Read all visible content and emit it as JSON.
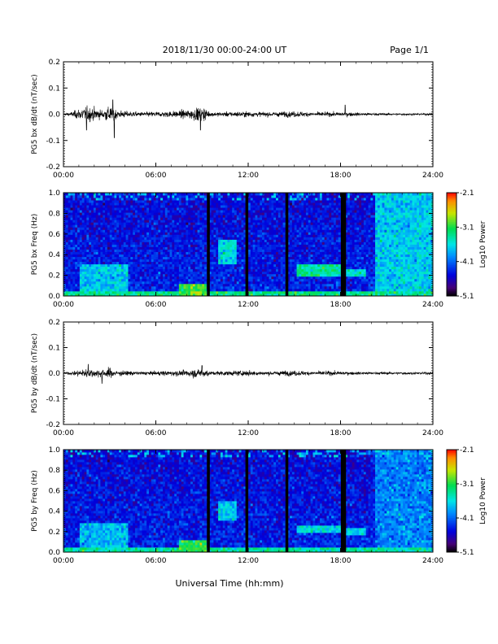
{
  "header": {
    "title": "2018/11/30  00:00-24:00 UT",
    "page": "Page 1/1"
  },
  "xlabel": "Universal Time (hh:mm)",
  "colorbar": {
    "label": "Log10 Power",
    "ticks": [
      "-2.1",
      "-3.1",
      "-4.1",
      "-5.1"
    ],
    "range": [
      -5.1,
      -2.1
    ]
  },
  "chart_data": [
    {
      "type": "line",
      "ylabel": "PG5 bx dB/dt (nT/sec)",
      "xlim": [
        0,
        24
      ],
      "ylim": [
        -0.2,
        0.2
      ],
      "xticks": [
        "00:00",
        "06:00",
        "12:00",
        "18:00",
        "24:00"
      ],
      "yticks": [
        "0.2",
        "0.1",
        "0.0",
        "-0.1",
        "-0.2"
      ],
      "noise_envelope": {
        "x": [
          0,
          0.5,
          1.0,
          1.5,
          2.0,
          2.5,
          3.0,
          3.5,
          4.0,
          5.0,
          6.0,
          7.0,
          8.0,
          8.5,
          9.0,
          9.3,
          9.5,
          10.0,
          11.0,
          12.0,
          13.0,
          14.0,
          15.0,
          16.0,
          17.0,
          18.0,
          18.5,
          19.0,
          20.0,
          21.0,
          22.0,
          23.0,
          24.0
        ],
        "amplitude": [
          0.004,
          0.01,
          0.025,
          0.035,
          0.03,
          0.02,
          0.04,
          0.02,
          0.015,
          0.01,
          0.012,
          0.015,
          0.02,
          0.03,
          0.03,
          0.03,
          0.01,
          0.01,
          0.012,
          0.013,
          0.01,
          0.012,
          0.014,
          0.01,
          0.01,
          0.01,
          0.01,
          0.008,
          0.006,
          0.005,
          0.005,
          0.005,
          0.005
        ]
      },
      "spikes": [
        {
          "t": 3.2,
          "v": 0.055
        },
        {
          "t": 3.3,
          "v": -0.09
        },
        {
          "t": 1.5,
          "v": -0.06
        },
        {
          "t": 18.3,
          "v": 0.035
        },
        {
          "t": 8.9,
          "v": -0.06
        }
      ]
    },
    {
      "type": "heatmap",
      "ylabel": "PG5 bx Freq (Hz)",
      "xlim": [
        0,
        24
      ],
      "ylim": [
        0,
        1
      ],
      "xticks": [
        "00:00",
        "06:00",
        "12:00",
        "18:00",
        "24:00"
      ],
      "yticks": [
        "1.0",
        "0.8",
        "0.6",
        "0.4",
        "0.2",
        "0.0"
      ],
      "zrange": [
        -5.1,
        -2.1
      ],
      "data_gaps_hours": [
        9.4,
        11.9,
        14.5,
        18.1,
        18.25
      ],
      "features": [
        {
          "t0": 0,
          "t1": 24,
          "f0": 0,
          "f1": 0.05,
          "level": -3.3
        },
        {
          "t0": 7.5,
          "t1": 9.3,
          "f0": 0,
          "f1": 0.12,
          "level": -3.0
        },
        {
          "t0": 10.0,
          "t1": 11.3,
          "f0": 0.3,
          "f1": 0.55,
          "level": -3.6
        },
        {
          "t0": 15.2,
          "t1": 18.1,
          "f0": 0.18,
          "f1": 0.3,
          "level": -3.4
        },
        {
          "t0": 18.3,
          "t1": 19.7,
          "f0": 0.18,
          "f1": 0.25,
          "level": -3.5
        },
        {
          "t0": 20.3,
          "t1": 24,
          "f0": 0.05,
          "f1": 1.0,
          "level": -3.7
        },
        {
          "t0": 1.0,
          "t1": 4.2,
          "f0": 0,
          "f1": 0.3,
          "level": -3.7
        }
      ]
    },
    {
      "type": "line",
      "ylabel": "PG5 by dB/dt (nT/sec)",
      "xlim": [
        0,
        24
      ],
      "ylim": [
        -0.2,
        0.2
      ],
      "xticks": [
        "00:00",
        "06:00",
        "12:00",
        "18:00",
        "24:00"
      ],
      "yticks": [
        "0.2",
        "0.1",
        "0.0",
        "-0.1",
        "-0.2"
      ],
      "noise_envelope": {
        "x": [
          0,
          0.5,
          1.0,
          1.5,
          2.0,
          2.5,
          3.0,
          3.5,
          4.0,
          5.0,
          6.0,
          7.0,
          8.0,
          8.5,
          9.0,
          9.3,
          9.5,
          10.0,
          11.0,
          12.0,
          13.0,
          14.0,
          15.0,
          16.0,
          17.0,
          18.0,
          18.5,
          19.0,
          20.0,
          21.0,
          22.0,
          23.0,
          24.0
        ],
        "amplitude": [
          0.005,
          0.008,
          0.015,
          0.022,
          0.02,
          0.018,
          0.025,
          0.012,
          0.012,
          0.008,
          0.01,
          0.012,
          0.015,
          0.02,
          0.02,
          0.02,
          0.009,
          0.01,
          0.012,
          0.013,
          0.009,
          0.011,
          0.013,
          0.009,
          0.01,
          0.01,
          0.008,
          0.007,
          0.006,
          0.006,
          0.006,
          0.006,
          0.006
        ]
      },
      "spikes": [
        {
          "t": 1.6,
          "v": 0.035
        },
        {
          "t": 2.5,
          "v": -0.04
        },
        {
          "t": 9.0,
          "v": 0.03
        }
      ]
    },
    {
      "type": "heatmap",
      "ylabel": "PG5 by Freq (Hz)",
      "xlim": [
        0,
        24
      ],
      "ylim": [
        0,
        1
      ],
      "xticks": [
        "00:00",
        "06:00",
        "12:00",
        "18:00",
        "24:00"
      ],
      "yticks": [
        "1.0",
        "0.8",
        "0.6",
        "0.4",
        "0.2",
        "0.0"
      ],
      "zrange": [
        -5.1,
        -2.1
      ],
      "data_gaps_hours": [
        9.4,
        11.9,
        14.5,
        18.1,
        18.25
      ],
      "features": [
        {
          "t0": 0,
          "t1": 24,
          "f0": 0,
          "f1": 0.05,
          "level": -3.4
        },
        {
          "t0": 7.5,
          "t1": 9.3,
          "f0": 0,
          "f1": 0.13,
          "level": -3.1
        },
        {
          "t0": 10.0,
          "t1": 11.3,
          "f0": 0.3,
          "f1": 0.5,
          "level": -3.7
        },
        {
          "t0": 15.2,
          "t1": 18.1,
          "f0": 0.18,
          "f1": 0.25,
          "level": -3.6
        },
        {
          "t0": 18.3,
          "t1": 19.7,
          "f0": 0.17,
          "f1": 0.23,
          "level": -3.7
        },
        {
          "t0": 20.3,
          "t1": 24,
          "f0": 0.05,
          "f1": 1.0,
          "level": -4.0
        },
        {
          "t0": 1.0,
          "t1": 4.2,
          "f0": 0,
          "f1": 0.28,
          "level": -3.8
        }
      ]
    }
  ]
}
